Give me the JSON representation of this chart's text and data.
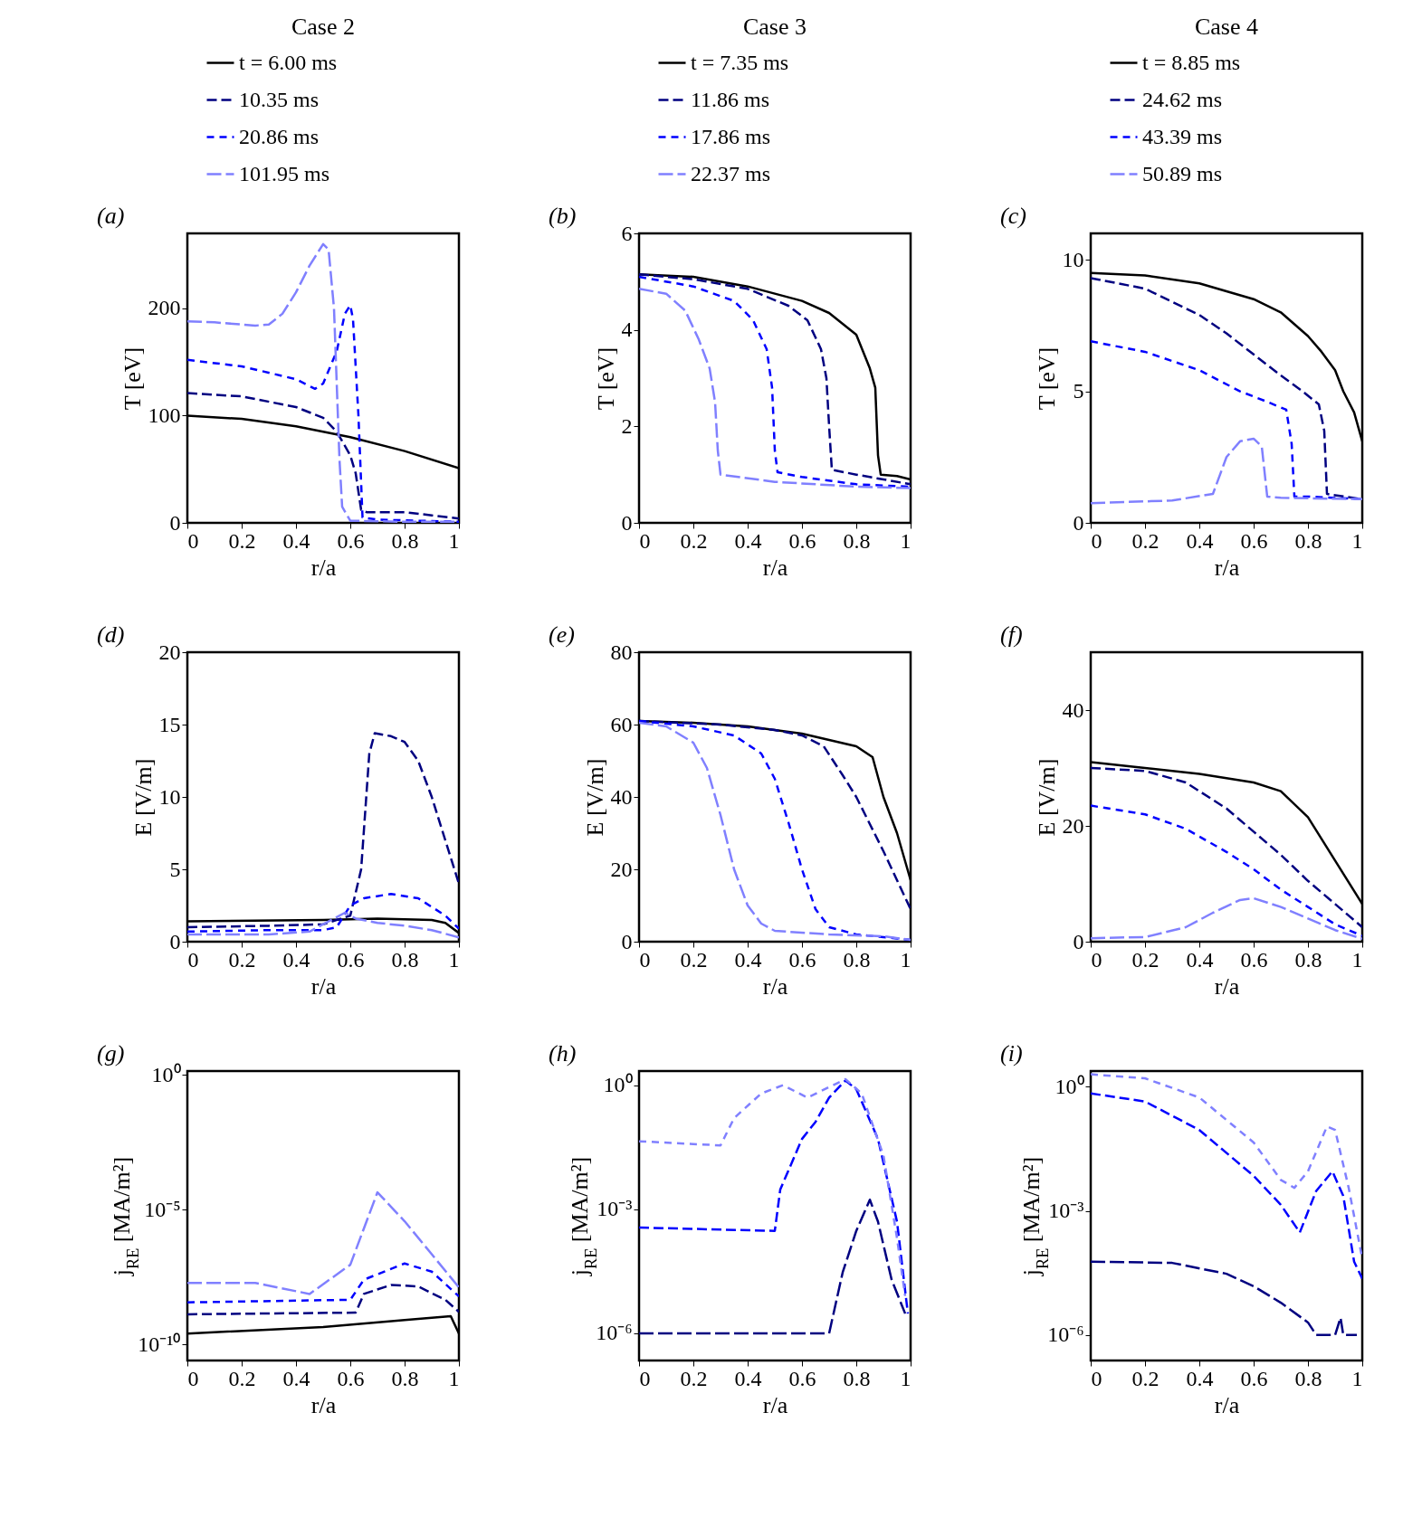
{
  "chart_data": [
    {
      "type": "line",
      "title": "Case 2",
      "xlabel": "r/a",
      "ylabel": "T [eV]",
      "annotations": [
        "(a)"
      ],
      "xlim": [
        0,
        1
      ],
      "xticks": [
        0,
        0.2,
        0.4,
        0.6,
        0.8,
        1
      ],
      "ylim": [
        0,
        270
      ],
      "yticks": [
        0,
        100,
        200
      ],
      "legend": "top",
      "series": [
        {
          "name": "t = 6.00 ms",
          "color": "#000000",
          "line_style": "solid",
          "x": [
            0,
            0.2,
            0.4,
            0.6,
            0.8,
            1
          ],
          "values": [
            100,
            97,
            90,
            80,
            67,
            51
          ]
        },
        {
          "name": "10.35 ms",
          "color": "#000080",
          "line_style": "dashed",
          "x": [
            0,
            0.2,
            0.4,
            0.5,
            0.55,
            0.6,
            0.62,
            0.64,
            0.66,
            0.7,
            0.8,
            0.9,
            1
          ],
          "values": [
            121,
            118,
            108,
            98,
            85,
            63,
            46,
            12,
            10,
            10,
            10,
            7,
            4
          ]
        },
        {
          "name": "20.86 ms",
          "color": "#0000ff",
          "line_style": "dashed",
          "x": [
            0,
            0.2,
            0.4,
            0.47,
            0.5,
            0.55,
            0.58,
            0.6,
            0.61,
            0.63,
            0.645,
            0.7,
            1
          ],
          "values": [
            152,
            146,
            134,
            125,
            130,
            160,
            195,
            203,
            190,
            100,
            5,
            3,
            1
          ]
        },
        {
          "name": "101.95 ms",
          "color": "#8080ff",
          "line_style": "dashed",
          "x": [
            0,
            0.1,
            0.25,
            0.3,
            0.35,
            0.4,
            0.45,
            0.5,
            0.52,
            0.54,
            0.56,
            0.57,
            0.6,
            0.8,
            1
          ],
          "values": [
            188,
            187,
            184,
            185,
            195,
            215,
            240,
            260,
            255,
            200,
            60,
            15,
            2,
            1,
            1
          ]
        }
      ]
    },
    {
      "type": "line",
      "title": "Case 3",
      "xlabel": "r/a",
      "ylabel": "T [eV]",
      "annotations": [
        "(b)"
      ],
      "xlim": [
        0,
        1
      ],
      "xticks": [
        0,
        0.2,
        0.4,
        0.6,
        0.8,
        1
      ],
      "ylim": [
        0,
        6
      ],
      "yticks": [
        0,
        2,
        4,
        6
      ],
      "legend": "top",
      "series": [
        {
          "name": "t = 7.35 ms",
          "color": "#000000",
          "line_style": "solid",
          "x": [
            0,
            0.2,
            0.4,
            0.6,
            0.7,
            0.8,
            0.85,
            0.87,
            0.88,
            0.89,
            0.95,
            1
          ],
          "values": [
            5.15,
            5.1,
            4.9,
            4.6,
            4.35,
            3.9,
            3.2,
            2.8,
            1.4,
            1.0,
            0.97,
            0.9
          ]
        },
        {
          "name": "11.86 ms",
          "color": "#000080",
          "line_style": "dashed",
          "x": [
            0,
            0.2,
            0.4,
            0.55,
            0.62,
            0.67,
            0.69,
            0.7,
            0.71,
            0.8,
            0.9,
            1
          ],
          "values": [
            5.15,
            5.05,
            4.85,
            4.5,
            4.2,
            3.6,
            3.0,
            2.0,
            1.1,
            1.0,
            0.9,
            0.8
          ]
        },
        {
          "name": "17.86 ms",
          "color": "#0000ff",
          "line_style": "dashed",
          "x": [
            0,
            0.2,
            0.35,
            0.42,
            0.47,
            0.49,
            0.5,
            0.51,
            0.6,
            0.8,
            1
          ],
          "values": [
            5.1,
            4.9,
            4.6,
            4.2,
            3.6,
            2.8,
            1.5,
            1.05,
            0.95,
            0.8,
            0.75
          ]
        },
        {
          "name": "22.37 ms",
          "color": "#8080ff",
          "line_style": "dashed",
          "x": [
            0,
            0.1,
            0.17,
            0.22,
            0.26,
            0.28,
            0.29,
            0.3,
            0.5,
            0.8,
            1
          ],
          "values": [
            4.85,
            4.75,
            4.4,
            3.8,
            3.2,
            2.5,
            1.5,
            1.0,
            0.85,
            0.75,
            0.72
          ]
        }
      ]
    },
    {
      "type": "line",
      "title": "Case 4",
      "xlabel": "r/a",
      "ylabel": "T [eV]",
      "annotations": [
        "(c)"
      ],
      "xlim": [
        0,
        1
      ],
      "xticks": [
        0,
        0.2,
        0.4,
        0.6,
        0.8,
        1
      ],
      "ylim": [
        0,
        11
      ],
      "yticks": [
        0,
        5,
        10
      ],
      "legend": "top",
      "series": [
        {
          "name": "t = 8.85 ms",
          "color": "#000000",
          "line_style": "solid",
          "x": [
            0,
            0.2,
            0.4,
            0.6,
            0.7,
            0.8,
            0.85,
            0.9,
            0.93,
            0.97,
            1
          ],
          "values": [
            9.5,
            9.4,
            9.1,
            8.5,
            8.0,
            7.1,
            6.5,
            5.8,
            5.0,
            4.2,
            3.1
          ]
        },
        {
          "name": "24.62 ms",
          "color": "#000080",
          "line_style": "dashed",
          "x": [
            0,
            0.2,
            0.4,
            0.5,
            0.6,
            0.7,
            0.78,
            0.84,
            0.86,
            0.87,
            0.9,
            1
          ],
          "values": [
            9.3,
            8.9,
            7.9,
            7.2,
            6.4,
            5.6,
            5.0,
            4.5,
            3.5,
            1.1,
            1.05,
            0.9
          ]
        },
        {
          "name": "43.39 ms",
          "color": "#0000ff",
          "line_style": "dashed",
          "x": [
            0,
            0.2,
            0.4,
            0.55,
            0.65,
            0.72,
            0.74,
            0.75,
            0.8,
            1
          ],
          "values": [
            6.9,
            6.5,
            5.8,
            5.0,
            4.6,
            4.3,
            3.0,
            1.0,
            1.0,
            0.9
          ]
        },
        {
          "name": "50.89 ms",
          "color": "#8080ff",
          "line_style": "dashed",
          "x": [
            0,
            0.3,
            0.45,
            0.5,
            0.55,
            0.6,
            0.63,
            0.65,
            0.7,
            1
          ],
          "values": [
            0.75,
            0.85,
            1.1,
            2.5,
            3.1,
            3.2,
            2.9,
            1.0,
            0.95,
            0.9
          ]
        }
      ]
    },
    {
      "type": "line",
      "xlabel": "r/a",
      "ylabel": "E [V/m]",
      "annotations": [
        "(d)"
      ],
      "xlim": [
        0,
        1
      ],
      "xticks": [
        0,
        0.2,
        0.4,
        0.6,
        0.8,
        1
      ],
      "ylim": [
        0,
        20
      ],
      "yticks": [
        0,
        5,
        10,
        15,
        20
      ],
      "series": [
        {
          "color": "#000000",
          "line_style": "solid",
          "x": [
            0,
            0.5,
            0.7,
            0.9,
            0.95,
            1
          ],
          "values": [
            1.4,
            1.5,
            1.6,
            1.5,
            1.3,
            0.6
          ]
        },
        {
          "color": "#000080",
          "line_style": "dashed",
          "x": [
            0,
            0.3,
            0.5,
            0.6,
            0.64,
            0.67,
            0.69,
            0.75,
            0.8,
            0.85,
            0.9,
            0.95,
            1
          ],
          "values": [
            1.0,
            1.1,
            1.2,
            1.8,
            5,
            13,
            14.4,
            14.2,
            13.8,
            12.5,
            10,
            7,
            4
          ]
        },
        {
          "color": "#0000ff",
          "line_style": "dashed",
          "x": [
            0,
            0.3,
            0.5,
            0.55,
            0.6,
            0.65,
            0.75,
            0.85,
            0.95,
            1
          ],
          "values": [
            0.7,
            0.8,
            0.8,
            1.0,
            2.5,
            3.0,
            3.3,
            3.0,
            1.8,
            0.9
          ]
        },
        {
          "color": "#8080ff",
          "line_style": "dashed",
          "x": [
            0,
            0.3,
            0.45,
            0.55,
            0.58,
            0.62,
            0.7,
            0.8,
            0.9,
            1
          ],
          "values": [
            0.5,
            0.5,
            0.7,
            1.7,
            2.0,
            1.6,
            1.3,
            1.1,
            0.8,
            0.3
          ]
        }
      ]
    },
    {
      "type": "line",
      "xlabel": "r/a",
      "ylabel": "E [V/m]",
      "annotations": [
        "(e)"
      ],
      "xlim": [
        0,
        1
      ],
      "xticks": [
        0,
        0.2,
        0.4,
        0.6,
        0.8,
        1
      ],
      "ylim": [
        0,
        80
      ],
      "yticks": [
        0,
        20,
        40,
        60,
        80
      ],
      "series": [
        {
          "color": "#000000",
          "line_style": "solid",
          "x": [
            0,
            0.2,
            0.4,
            0.6,
            0.8,
            0.86,
            0.9,
            0.95,
            1
          ],
          "values": [
            61,
            60.5,
            59.5,
            57.5,
            54,
            51,
            40,
            30,
            17
          ]
        },
        {
          "color": "#000080",
          "line_style": "dashed",
          "x": [
            0,
            0.3,
            0.5,
            0.6,
            0.68,
            0.75,
            0.8,
            0.9,
            1
          ],
          "values": [
            61,
            60,
            58.5,
            57,
            54,
            46,
            40,
            25,
            9
          ]
        },
        {
          "color": "#0000ff",
          "line_style": "dashed",
          "x": [
            0,
            0.2,
            0.35,
            0.45,
            0.5,
            0.55,
            0.6,
            0.65,
            0.7,
            0.8,
            1
          ],
          "values": [
            61,
            59.5,
            57,
            52,
            45,
            33,
            20,
            9,
            4,
            2,
            0.5
          ]
        },
        {
          "color": "#8080ff",
          "line_style": "dashed",
          "x": [
            0,
            0.1,
            0.2,
            0.25,
            0.3,
            0.35,
            0.4,
            0.45,
            0.5,
            0.7,
            0.9,
            1
          ],
          "values": [
            60.5,
            59.5,
            55,
            48,
            35,
            20,
            10,
            5,
            3,
            2,
            1.5,
            0.5
          ]
        }
      ]
    },
    {
      "type": "line",
      "xlabel": "r/a",
      "ylabel": "E [V/m]",
      "annotations": [
        "(f)"
      ],
      "xlim": [
        0,
        1
      ],
      "xticks": [
        0,
        0.2,
        0.4,
        0.6,
        0.8,
        1
      ],
      "ylim": [
        0,
        50
      ],
      "yticks": [
        0,
        20,
        40
      ],
      "series": [
        {
          "color": "#000000",
          "line_style": "solid",
          "x": [
            0,
            0.2,
            0.4,
            0.6,
            0.7,
            0.8,
            0.9,
            1
          ],
          "values": [
            31,
            30,
            29,
            27.5,
            26,
            21.5,
            14,
            6.5
          ]
        },
        {
          "color": "#000080",
          "line_style": "dashed",
          "x": [
            0,
            0.2,
            0.35,
            0.5,
            0.6,
            0.7,
            0.8,
            0.9,
            1
          ],
          "values": [
            30,
            29.5,
            27.5,
            23,
            19,
            15,
            10.5,
            6.5,
            2.5
          ]
        },
        {
          "color": "#0000ff",
          "line_style": "dashed",
          "x": [
            0,
            0.2,
            0.35,
            0.5,
            0.6,
            0.7,
            0.8,
            0.9,
            1
          ],
          "values": [
            23.5,
            22,
            19.5,
            15.5,
            12.5,
            9,
            6,
            3,
            1
          ]
        },
        {
          "color": "#8080ff",
          "line_style": "dashed",
          "x": [
            0,
            0.2,
            0.35,
            0.45,
            0.55,
            0.6,
            0.7,
            0.8,
            0.9,
            1
          ],
          "values": [
            0.6,
            0.8,
            2.5,
            5,
            7.2,
            7.5,
            6,
            4,
            2,
            0.5
          ]
        }
      ]
    },
    {
      "type": "line",
      "xlabel": "r/a",
      "ylabel": "j$_{RE}$ [MA/m²]",
      "annotations": [
        "(g)"
      ],
      "xlim": [
        0,
        1
      ],
      "xticks": [
        0,
        0.2,
        0.4,
        0.6,
        0.8,
        1
      ],
      "ylim": [
        2.5e-11,
        1.4
      ],
      "log": true,
      "yticks": [
        {
          "value": 1e-10,
          "label": "10⁻¹⁰"
        },
        {
          "value": 1e-05,
          "label": "10⁻⁵"
        },
        {
          "value": 1,
          "label": "10⁰"
        }
      ],
      "series": [
        {
          "color": "#000000",
          "line_style": "solid",
          "x": [
            0,
            0.5,
            0.8,
            0.97,
            1
          ],
          "values": [
            2.5e-10,
            4.4e-10,
            8e-10,
            1.1e-09,
            2.5e-10
          ]
        },
        {
          "color": "#000080",
          "line_style": "dashed",
          "x": [
            0,
            0.62,
            0.65,
            0.75,
            0.85,
            0.95,
            1
          ],
          "values": [
            1.3e-09,
            1.5e-09,
            7.4e-09,
            1.6e-08,
            1.4e-08,
            4.5e-09,
            1.6e-09
          ]
        },
        {
          "color": "#0000ff",
          "line_style": "dashed",
          "x": [
            0,
            0.6,
            0.65,
            0.8,
            0.9,
            1
          ],
          "values": [
            3.6e-09,
            4.5e-09,
            2.5e-08,
            1e-07,
            5e-08,
            6e-09
          ]
        },
        {
          "color": "#8080ff",
          "line_style": "dashed",
          "x": [
            0,
            0.25,
            0.45,
            0.6,
            0.7,
            0.8,
            0.9,
            1
          ],
          "values": [
            1.9e-08,
            1.9e-08,
            7.4e-09,
            9e-08,
            4.4e-05,
            3.7e-06,
            2.2e-07,
            1.3e-08
          ]
        }
      ]
    },
    {
      "type": "line",
      "xlabel": "r/a",
      "ylabel": "j$_{RE}$ [MA/m²]",
      "annotations": [
        "(h)"
      ],
      "xlim": [
        0,
        1
      ],
      "xticks": [
        0,
        0.2,
        0.4,
        0.6,
        0.8,
        1
      ],
      "ylim": [
        2.2e-07,
        2.2
      ],
      "log": true,
      "yticks": [
        {
          "value": 1e-06,
          "label": "10⁻⁶"
        },
        {
          "value": 0.001,
          "label": "10⁻³"
        },
        {
          "value": 1,
          "label": "10⁰"
        }
      ],
      "series": [
        {
          "color": "#000080",
          "line_style": "dashed",
          "x": [
            0,
            0.7,
            0.75,
            0.8,
            0.85,
            0.88,
            0.93,
            0.98
          ],
          "values": [
            1e-06,
            1e-06,
            3e-05,
            0.0003,
            0.0017,
            0.0005,
            2e-05,
            3e-06
          ]
        },
        {
          "color": "#0000ff",
          "line_style": "dashed",
          "x": [
            0,
            0.5,
            0.52,
            0.6,
            0.65,
            0.7,
            0.76,
            0.8,
            0.88,
            0.95,
            0.99
          ],
          "values": [
            0.00036,
            0.0003,
            0.003,
            0.05,
            0.13,
            0.5,
            1.3,
            0.8,
            0.05,
            0.0005,
            3e-06
          ]
        },
        {
          "color": "#8080ff",
          "line_style": "dashed",
          "x": [
            0,
            0.3,
            0.35,
            0.45,
            0.53,
            0.62,
            0.76,
            0.82,
            0.9,
            0.95,
            0.98
          ],
          "values": [
            0.044,
            0.035,
            0.16,
            0.63,
            1.0,
            0.5,
            1.4,
            0.63,
            0.02,
            0.0002,
            8e-06
          ]
        }
      ]
    },
    {
      "type": "line",
      "xlabel": "r/a",
      "ylabel": "j$_{RE}$ [MA/m²]",
      "annotations": [
        "(i)"
      ],
      "xlim": [
        0,
        1
      ],
      "xticks": [
        0,
        0.2,
        0.4,
        0.6,
        0.8,
        1
      ],
      "ylim": [
        2.4e-07,
        2.4
      ],
      "log": true,
      "yticks": [
        {
          "value": 1e-06,
          "label": "10⁻⁶"
        },
        {
          "value": 0.001,
          "label": "10⁻³"
        },
        {
          "value": 1,
          "label": "10⁰"
        }
      ],
      "series": [
        {
          "color": "#000080",
          "line_style": "dashed",
          "x": [
            0,
            0.3,
            0.5,
            0.6,
            0.7,
            0.8,
            0.83,
            0.9,
            0.92,
            0.93,
            0.98
          ],
          "values": [
            5.9e-05,
            5.5e-05,
            3e-05,
            1.5e-05,
            6e-06,
            2e-06,
            1e-06,
            1e-06,
            2.6e-06,
            1e-06,
            1e-06
          ]
        },
        {
          "color": "#0000ff",
          "line_style": "dashed",
          "x": [
            0,
            0.2,
            0.4,
            0.6,
            0.7,
            0.77,
            0.83,
            0.89,
            0.93,
            0.97,
            1
          ],
          "values": [
            0.69,
            0.44,
            0.09,
            0.007,
            0.0014,
            0.0003,
            0.003,
            0.009,
            0.0023,
            5.9e-05,
            2.3e-05
          ]
        },
        {
          "color": "#8080ff",
          "line_style": "dashed",
          "x": [
            0,
            0.2,
            0.4,
            0.6,
            0.7,
            0.75,
            0.8,
            0.87,
            0.9,
            0.95,
            1
          ],
          "values": [
            2.0,
            1.6,
            0.55,
            0.045,
            0.0056,
            0.0036,
            0.009,
            0.11,
            0.09,
            0.0036,
            7e-05
          ]
        }
      ]
    }
  ]
}
